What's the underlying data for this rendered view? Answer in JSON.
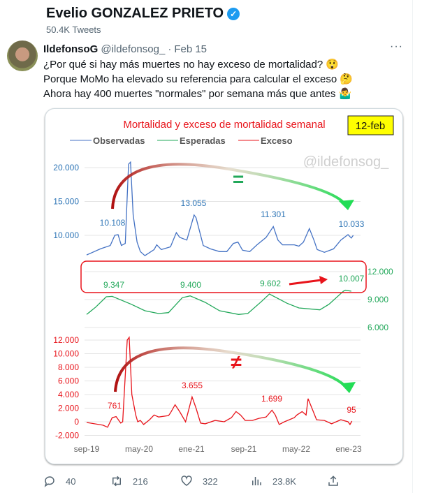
{
  "profile_header": {
    "name": "Evelio GONZALEZ PRIETO",
    "tweet_count": "50.4K Tweets"
  },
  "tweet": {
    "display_name": "IldefonsoG",
    "handle": "@ildefonsog_",
    "separator": "·",
    "date": "Feb 15",
    "more": "···",
    "lines": [
      "¿Por qué si hay más muertes no hay exceso de mortalidad? 😲",
      "Porque MoMo ha elevado su referencia para calcular el exceso 🤔",
      "Ahora hay 400 muertes \"normales\" por semana más que antes 🤷‍♂️"
    ]
  },
  "actions": {
    "replies": "40",
    "retweets": "216",
    "likes": "322",
    "views": "23.8K"
  },
  "chart_data": {
    "type": "line",
    "title": "Mortalidad y exceso de mortalidad semanal",
    "date_badge": "12-feb",
    "watermark": "@ildefonsog_",
    "legend": [
      "Observadas",
      "Esperadas",
      "Exceso"
    ],
    "legend_placement": "top",
    "x_unit": "months since sep-19",
    "x_ticks": [
      "sep-19",
      "may-20",
      "ene-21",
      "sep-21",
      "may-22",
      "ene-23"
    ],
    "colors": {
      "observadas": "#4472c4",
      "esperadas": "#22a85a",
      "exceso": "#e8141b",
      "badge": "#ffff00"
    },
    "symbols": {
      "equal": "=",
      "not_equal": "≠"
    },
    "panels": {
      "observadas": {
        "y_ticks": [
          "20.000",
          "15.000",
          "10.000"
        ],
        "labels": [
          "10.108",
          "13.055",
          "11.301",
          "10.033"
        ],
        "points": [
          [
            0,
            7100
          ],
          [
            2.1,
            8000
          ],
          [
            3.6,
            8500
          ],
          [
            4.3,
            10000
          ],
          [
            4.8,
            10100
          ],
          [
            5.3,
            8500
          ],
          [
            5.9,
            8800
          ],
          [
            6.4,
            20500
          ],
          [
            6.7,
            20800
          ],
          [
            7.1,
            13000
          ],
          [
            7.7,
            9000
          ],
          [
            8.2,
            7600
          ],
          [
            8.9,
            7000
          ],
          [
            10.3,
            7900
          ],
          [
            10.7,
            8600
          ],
          [
            11.4,
            7900
          ],
          [
            12.8,
            8300
          ],
          [
            13.7,
            10400
          ],
          [
            14.2,
            9700
          ],
          [
            15.3,
            9300
          ],
          [
            16.4,
            13000
          ],
          [
            16.7,
            12600
          ],
          [
            17.8,
            8500
          ],
          [
            18.9,
            8000
          ],
          [
            20.3,
            7600
          ],
          [
            21.4,
            7600
          ],
          [
            22.4,
            8800
          ],
          [
            23.1,
            9000
          ],
          [
            23.8,
            7800
          ],
          [
            24.9,
            7600
          ],
          [
            26.0,
            8600
          ],
          [
            27.4,
            9700
          ],
          [
            28.5,
            11300
          ],
          [
            29.2,
            9300
          ],
          [
            29.9,
            8600
          ],
          [
            31.7,
            8600
          ],
          [
            32.4,
            8400
          ],
          [
            33.1,
            9000
          ],
          [
            34.0,
            11000
          ],
          [
            34.7,
            9300
          ],
          [
            35.2,
            7900
          ],
          [
            36.3,
            7500
          ],
          [
            37.7,
            8000
          ],
          [
            38.8,
            9300
          ],
          [
            39.9,
            10100
          ],
          [
            40.4,
            9600
          ],
          [
            40.7,
            10000
          ]
        ]
      },
      "esperadas": {
        "y_ticks": [
          "12.000",
          "9.000",
          "6.000"
        ],
        "labels": [
          "9.347",
          "9.400",
          "9.602",
          "10.007"
        ],
        "points": [
          [
            0,
            7400
          ],
          [
            1.4,
            8200
          ],
          [
            3.0,
            9300
          ],
          [
            3.9,
            9347
          ],
          [
            6.8,
            8500
          ],
          [
            8.9,
            7800
          ],
          [
            11.0,
            7500
          ],
          [
            12.5,
            7600
          ],
          [
            14.6,
            9200
          ],
          [
            15.8,
            9400
          ],
          [
            18.1,
            8700
          ],
          [
            20.3,
            7800
          ],
          [
            23.2,
            7400
          ],
          [
            24.6,
            7500
          ],
          [
            26.7,
            8800
          ],
          [
            27.9,
            9602
          ],
          [
            30.6,
            8600
          ],
          [
            32.4,
            8100
          ],
          [
            35.6,
            7900
          ],
          [
            37.0,
            8500
          ],
          [
            39.2,
            9900
          ],
          [
            39.5,
            10007
          ],
          [
            40.4,
            9900
          ]
        ]
      },
      "exceso": {
        "y_ticks": [
          "12.000",
          "10.000",
          "8.000",
          "6.000",
          "4.000",
          "2.000",
          "0",
          "-2.000"
        ],
        "labels": [
          "761",
          "3.655",
          "1.699",
          "95"
        ],
        "points": [
          [
            0,
            -100
          ],
          [
            2.5,
            -500
          ],
          [
            3.2,
            -800
          ],
          [
            3.9,
            600
          ],
          [
            4.5,
            761
          ],
          [
            5.2,
            -200
          ],
          [
            5.5,
            0
          ],
          [
            6.2,
            12000
          ],
          [
            6.5,
            12400
          ],
          [
            6.9,
            4000
          ],
          [
            7.5,
            1000
          ],
          [
            7.8,
            0
          ],
          [
            8.2,
            200
          ],
          [
            8.7,
            -400
          ],
          [
            9.6,
            300
          ],
          [
            10.3,
            1000
          ],
          [
            11.0,
            700
          ],
          [
            12.5,
            900
          ],
          [
            12.8,
            1300
          ],
          [
            13.5,
            2500
          ],
          [
            14.2,
            1500
          ],
          [
            15.1,
            0
          ],
          [
            16.1,
            3655
          ],
          [
            16.7,
            2000
          ],
          [
            17.4,
            -200
          ],
          [
            18.1,
            -300
          ],
          [
            19.6,
            200
          ],
          [
            21.0,
            0
          ],
          [
            22.1,
            600
          ],
          [
            22.8,
            1500
          ],
          [
            23.5,
            1000
          ],
          [
            24.2,
            200
          ],
          [
            25.3,
            200
          ],
          [
            26.3,
            500
          ],
          [
            27.4,
            700
          ],
          [
            28.3,
            1699
          ],
          [
            28.8,
            1000
          ],
          [
            29.4,
            -400
          ],
          [
            30.2,
            0
          ],
          [
            31.7,
            600
          ],
          [
            32.1,
            1000
          ],
          [
            32.9,
            1500
          ],
          [
            33.5,
            1000
          ],
          [
            33.8,
            3400
          ],
          [
            34.6,
            1500
          ],
          [
            35.1,
            300
          ],
          [
            36.3,
            200
          ],
          [
            37.4,
            -300
          ],
          [
            38.8,
            300
          ],
          [
            39.9,
            0
          ],
          [
            40.2,
            -400
          ],
          [
            40.5,
            100
          ]
        ]
      }
    }
  }
}
